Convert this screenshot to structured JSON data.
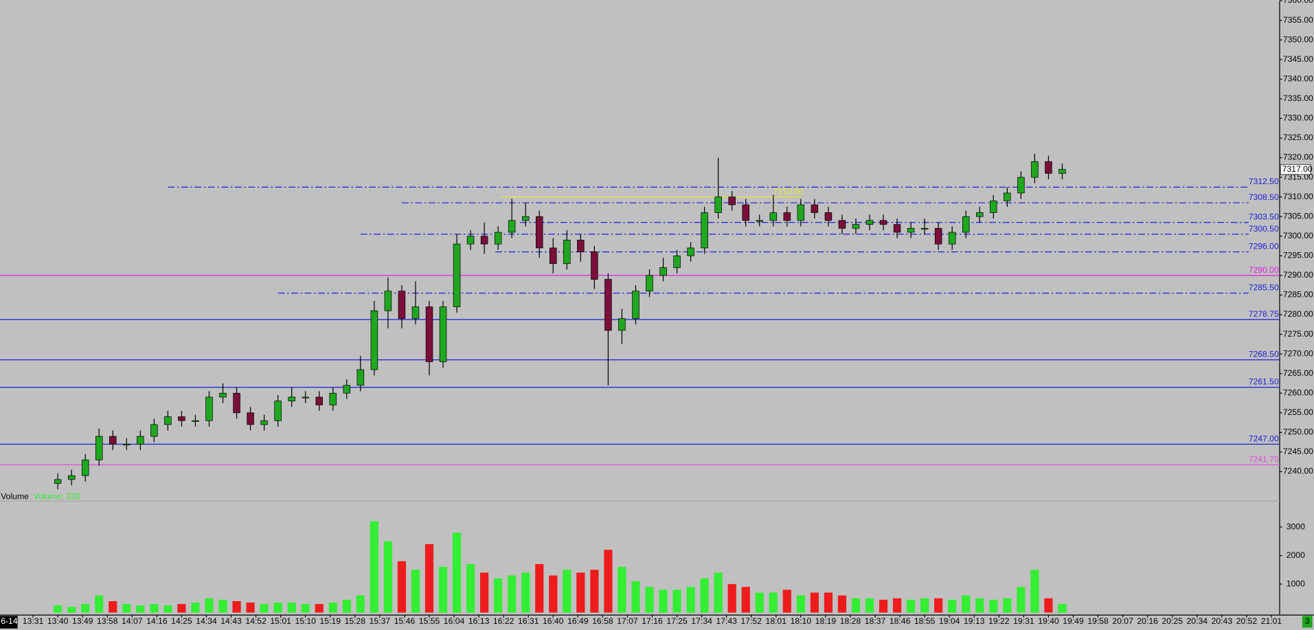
{
  "chart_data": {
    "type": "candlestick",
    "date_label": "6-14",
    "volume_title": "Volume",
    "volume_readout": "Volume: 233",
    "xlim": [
      "13:19",
      "21:04"
    ],
    "xticks": [
      "13:31",
      "13:40",
      "13:49",
      "13:58",
      "14:07",
      "14:16",
      "14:25",
      "14:34",
      "14:43",
      "14:52",
      "15:01",
      "15:10",
      "15:19",
      "15:28",
      "15:37",
      "15:46",
      "15:55",
      "16:04",
      "16:13",
      "16:22",
      "16:31",
      "16:40",
      "16:49",
      "16:58",
      "17:07",
      "17:16",
      "17:25",
      "17:34",
      "17:43",
      "17:52",
      "18:01",
      "18:10",
      "18:19",
      "18:28",
      "18:37",
      "18:46",
      "18:55",
      "19:04",
      "19:13",
      "19:22",
      "19:31",
      "19:40",
      "19:49",
      "19:58",
      "20:07",
      "20:16",
      "20:25",
      "20:34",
      "20:43",
      "20:52",
      "21:01"
    ],
    "ylim": [
      7234,
      7360
    ],
    "yticks": [
      {
        "value": 7240,
        "label": "7240.00"
      },
      {
        "value": 7245,
        "label": "7245.00"
      },
      {
        "value": 7250,
        "label": "7250.00"
      },
      {
        "value": 7255,
        "label": "7255.00"
      },
      {
        "value": 7260,
        "label": "7260.00"
      },
      {
        "value": 7265,
        "label": "7265.00"
      },
      {
        "value": 7270,
        "label": "7270.00"
      },
      {
        "value": 7275,
        "label": "7275.00"
      },
      {
        "value": 7280,
        "label": "7280.00"
      },
      {
        "value": 7285,
        "label": "7285.00"
      },
      {
        "value": 7290,
        "label": "7290.00"
      },
      {
        "value": 7295,
        "label": "7295.00"
      },
      {
        "value": 7300,
        "label": "7300.00"
      },
      {
        "value": 7305,
        "label": "7305.00"
      },
      {
        "value": 7310,
        "label": "7310.00"
      },
      {
        "value": 7315,
        "label": "7315.00"
      },
      {
        "value": 7320,
        "label": "7320.00"
      },
      {
        "value": 7325,
        "label": "7325.00"
      },
      {
        "value": 7330,
        "label": "7330.00"
      },
      {
        "value": 7335,
        "label": "7335.00"
      },
      {
        "value": 7340,
        "label": "7340.00"
      },
      {
        "value": 7345,
        "label": "7345.00"
      },
      {
        "value": 7350,
        "label": "7350.00"
      },
      {
        "value": 7355,
        "label": "7355.00"
      },
      {
        "value": 7360,
        "label": "7360.00"
      }
    ],
    "vlim": [
      0,
      3820
    ],
    "vticks": [
      1000,
      2000,
      3000
    ],
    "up_color": "#1fa81f",
    "down_color": "#7a0f3a",
    "volume_up_color": "#33ee33",
    "volume_down_color": "#ee1c1c",
    "x": [
      "13:40",
      "13:45",
      "13:50",
      "13:55",
      "14:00",
      "14:05",
      "14:10",
      "14:15",
      "14:20",
      "14:25",
      "14:30",
      "14:35",
      "14:40",
      "14:45",
      "14:50",
      "14:55",
      "15:00",
      "15:05",
      "15:10",
      "15:15",
      "15:20",
      "15:25",
      "15:30",
      "15:35",
      "15:40",
      "15:45",
      "15:50",
      "15:55",
      "16:00",
      "16:05",
      "16:10",
      "16:15",
      "16:20",
      "16:25",
      "16:30",
      "16:35",
      "16:40",
      "16:45",
      "16:50",
      "16:55",
      "17:00",
      "17:05",
      "17:10",
      "17:15",
      "17:20",
      "17:25",
      "17:30",
      "17:35",
      "17:40",
      "17:45",
      "17:50",
      "17:55",
      "18:00",
      "18:05",
      "18:10",
      "18:15",
      "18:20",
      "18:25",
      "18:30",
      "18:35",
      "18:40",
      "18:45",
      "18:50",
      "18:55",
      "19:00",
      "19:05",
      "19:10",
      "19:15",
      "19:20",
      "19:25",
      "19:30",
      "19:35",
      "19:40",
      "19:45"
    ],
    "open": [
      7237,
      7238,
      7239,
      7243,
      7249,
      7247,
      7247,
      7249,
      7252,
      7254,
      7253,
      7253,
      7259,
      7260,
      7255,
      7252,
      7253,
      7258,
      7259,
      7259,
      7257,
      7260,
      7262,
      7266,
      7281,
      7286,
      7279,
      7282,
      7268,
      7282,
      7298,
      7300,
      7298,
      7301,
      7304,
      7305,
      7297,
      7293,
      7299,
      7296,
      7289,
      7276,
      7279,
      7286,
      7290,
      7292,
      7295,
      7297,
      7306,
      7310,
      7308,
      7304,
      7304,
      7306,
      7304,
      7308,
      7306,
      7304,
      7302,
      7303,
      7304,
      7303,
      7301,
      7302,
      7302,
      7298,
      7301,
      7305,
      7306,
      7309,
      7311,
      7315,
      7319,
      7316
    ],
    "high": [
      7239.5,
      7240.5,
      7244.5,
      7251,
      7250.5,
      7248.5,
      7250.5,
      7253.5,
      7255.5,
      7255.5,
      7254.5,
      7260.5,
      7262.5,
      7261.5,
      7256.5,
      7254.5,
      7259.5,
      7261.5,
      7260.5,
      7260.5,
      7261.5,
      7263.5,
      7269.5,
      7283.5,
      7289.5,
      7287.5,
      7288.5,
      7283.5,
      7283.5,
      7300.5,
      7301.5,
      7303.5,
      7302.5,
      7309.5,
      7308.5,
      7306.5,
      7299.5,
      7301.5,
      7300.5,
      7297.5,
      7290.5,
      7281.5,
      7287.5,
      7291.5,
      7294.5,
      7296.5,
      7298.5,
      7307.5,
      7320,
      7311.5,
      7309.5,
      7305.5,
      7310.5,
      7307.5,
      7309.5,
      7309.5,
      7307.5,
      7305.5,
      7304.5,
      7305.5,
      7305.5,
      7304.5,
      7303.5,
      7304.5,
      7303.5,
      7302.5,
      7306.5,
      7307.5,
      7310.5,
      7312.5,
      7316.5,
      7321,
      7320.5,
      7318.5
    ],
    "low": [
      7235.5,
      7236.5,
      7237.5,
      7241.5,
      7245.5,
      7245.5,
      7245.5,
      7247.5,
      7250.5,
      7251.5,
      7251.5,
      7251.5,
      7257.5,
      7253.5,
      7250.5,
      7250.5,
      7251.5,
      7256.5,
      7257.5,
      7255.5,
      7255.5,
      7258.5,
      7260.5,
      7264.5,
      7276.5,
      7276.5,
      7277.5,
      7264.5,
      7266.5,
      7280.5,
      7296.5,
      7295.5,
      7296.5,
      7299.5,
      7302.5,
      7294.5,
      7290.5,
      7291.5,
      7293.5,
      7286.5,
      7262,
      7272.5,
      7277.5,
      7284.5,
      7288.5,
      7290.5,
      7293.5,
      7295.5,
      7304.5,
      7306.5,
      7302.5,
      7302.5,
      7302.5,
      7302.5,
      7302.5,
      7304.5,
      7302.5,
      7300.5,
      7300.5,
      7301.5,
      7301.5,
      7299.5,
      7299.5,
      7300.5,
      7296.5,
      7296.5,
      7299.5,
      7303.5,
      7304.5,
      7307.5,
      7309.5,
      7313.5,
      7314.5,
      7314.5
    ],
    "close": [
      7238,
      7239,
      7243,
      7249,
      7247,
      7247,
      7249,
      7252,
      7254,
      7253,
      7253,
      7259,
      7260,
      7255,
      7252,
      7253,
      7258,
      7259,
      7259,
      7257,
      7260,
      7262,
      7266,
      7281,
      7286,
      7279,
      7282,
      7268,
      7282,
      7298,
      7300,
      7298,
      7301,
      7304,
      7305,
      7297,
      7293,
      7299,
      7296,
      7289,
      7276,
      7279,
      7286,
      7290,
      7292,
      7295,
      7297,
      7306,
      7310,
      7308,
      7304,
      7304,
      7306,
      7304,
      7308,
      7306,
      7304,
      7302,
      7303,
      7304,
      7303,
      7301,
      7302,
      7302,
      7298,
      7301,
      7305,
      7306,
      7309,
      7311,
      7315,
      7319,
      7316,
      7317
    ],
    "volume": [
      250,
      200,
      300,
      600,
      400,
      300,
      250,
      300,
      250,
      300,
      350,
      500,
      450,
      400,
      350,
      300,
      350,
      350,
      300,
      300,
      350,
      450,
      600,
      3200,
      2500,
      1800,
      1500,
      2400,
      1600,
      2800,
      1700,
      1400,
      1200,
      1300,
      1400,
      1700,
      1300,
      1500,
      1400,
      1500,
      2200,
      1600,
      1100,
      900,
      800,
      800,
      900,
      1200,
      1400,
      1000,
      900,
      700,
      700,
      800,
      600,
      700,
      700,
      600,
      500,
      500,
      450,
      500,
      450,
      500,
      500,
      450,
      600,
      500,
      450,
      500,
      900,
      1500,
      500,
      300
    ],
    "levels": [
      {
        "value": 7312.5,
        "label": "7312.50",
        "color": "#1c1cd8",
        "style": "dashdot",
        "start": "14:20"
      },
      {
        "value": 7308.5,
        "label": "7308.50",
        "color": "#1c1cd8",
        "style": "dashdot",
        "start": "15:45"
      },
      {
        "value": 7303.5,
        "label": "7303.50",
        "color": "#1c1cd8",
        "style": "dashdot",
        "start": "16:28"
      },
      {
        "value": 7300.5,
        "label": "7300.50",
        "color": "#1c1cd8",
        "style": "dashdot",
        "start": "15:30"
      },
      {
        "value": 7296,
        "label": "7296.00",
        "color": "#1c1cd8",
        "style": "dashdot",
        "start": "16:19"
      },
      {
        "value": 7290,
        "label": "7290.00",
        "color": "#e020e0",
        "style": "solid"
      },
      {
        "value": 7285.5,
        "label": "7285.50",
        "color": "#1c1cd8",
        "style": "dashdot",
        "start": "15:00"
      },
      {
        "value": 7278.75,
        "label": "7278.75",
        "color": "#1c1cd8",
        "style": "solid"
      },
      {
        "value": 7268.5,
        "label": "7268.50",
        "color": "#1c1cd8",
        "style": "solid"
      },
      {
        "value": 7261.5,
        "label": "7261.50",
        "color": "#1c1cd8",
        "style": "solid"
      },
      {
        "value": 7247,
        "label": "7247.00",
        "color": "#1c1cd8",
        "style": "solid"
      },
      {
        "value": 7241.75,
        "label": "7241.75",
        "color": "#e050e0",
        "style": "solid"
      }
    ],
    "marker_line": {
      "value": 7310,
      "label": "7310.00",
      "color": "#e8e840",
      "start": "16:21",
      "end": "18:10"
    },
    "last": {
      "value": 7317,
      "label": "7317.00"
    },
    "status": "3"
  }
}
